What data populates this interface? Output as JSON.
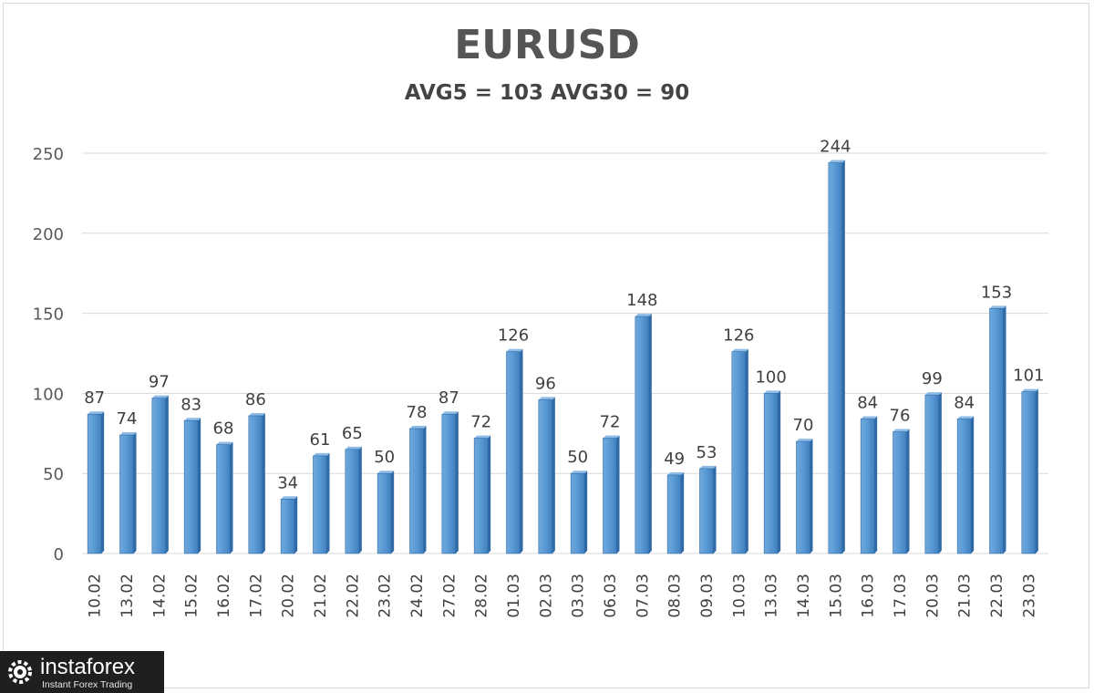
{
  "chart_data": {
    "type": "bar",
    "title": "EURUSD",
    "subtitle": "AVG5 = 103 AVG30 = 90",
    "xlabel": "",
    "ylabel": "",
    "ylim": [
      0,
      250
    ],
    "yticks": [
      0,
      50,
      100,
      150,
      200,
      250
    ],
    "grid": true,
    "legend": "none",
    "bar_color": "#5b9bd5",
    "categories": [
      "10.02",
      "13.02",
      "14.02",
      "15.02",
      "16.02",
      "17.02",
      "20.02",
      "21.02",
      "22.02",
      "23.02",
      "24.02",
      "27.02",
      "28.02",
      "01.03",
      "02.03",
      "03.03",
      "06.03",
      "07.03",
      "08.03",
      "09.03",
      "10.03",
      "13.03",
      "14.03",
      "15.03",
      "16.03",
      "17.03",
      "20.03",
      "21.03",
      "22.03",
      "23.03"
    ],
    "values": [
      87,
      74,
      97,
      83,
      68,
      86,
      34,
      61,
      65,
      50,
      78,
      87,
      72,
      126,
      96,
      50,
      72,
      148,
      49,
      53,
      126,
      100,
      70,
      244,
      84,
      76,
      99,
      84,
      153,
      101
    ]
  },
  "watermark": {
    "name": "instaforex",
    "tagline": "Instant Forex Trading"
  }
}
